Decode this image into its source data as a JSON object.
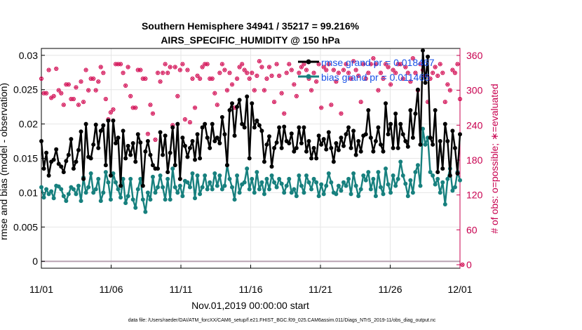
{
  "chart_data": {
    "type": "line",
    "title_line1": "Southern Hemisphere 34941 / 35217 = 99.216%",
    "title_line2": "AIRS_SPECIFIC_HUMIDITY @ 150 hPa",
    "xlabel": "Nov.01,2019 00:00:00 start",
    "ylabel_left": "rmse and bias (model - observation)",
    "ylabel_right": "# of obs: o=possible; ∗=evaluated",
    "footer": "data file: /Users/raeder/DAI/ATM_forcXX/CAM6_setup/f.e21.FHIST_BGC.f09_025.CAM6assim.011/Diags_NTrS_2019-11/obs_diag_output.nc",
    "x_tick_labels": [
      "11/01",
      "11/06",
      "11/11",
      "11/16",
      "11/21",
      "11/26",
      "12/01"
    ],
    "x_tick_days": [
      0,
      5,
      10,
      15,
      20,
      25,
      30
    ],
    "xlim": [
      0,
      30
    ],
    "ylim_left": [
      -0.001,
      0.031
    ],
    "y_left_ticks": [
      0,
      0.005,
      0.01,
      0.015,
      0.02,
      0.025,
      0.03
    ],
    "y_left_tick_labels": [
      "0",
      "0.005",
      "0.01",
      "0.015",
      "0.02",
      "0.025",
      "0.03"
    ],
    "ylim_right": [
      -6,
      372
    ],
    "y_right_ticks": [
      0,
      60,
      120,
      180,
      240,
      300,
      360
    ],
    "y_right_tick_labels": [
      "0",
      "60",
      "120",
      "180",
      "240",
      "300",
      "360"
    ],
    "grid": true,
    "legend": {
      "placement": "top-right",
      "entries": [
        "rmse grand pr = 0.018467",
        "bias grand pr = 0.011465"
      ]
    },
    "colors": {
      "rmse": "#000000",
      "bias": "#17807e",
      "obs": "#d4165a",
      "legend_text": "#1a52e6",
      "right_axis": "#c8004f"
    },
    "series": [
      {
        "name": "rmse",
        "values": [
          0.0175,
          0.0135,
          0.0158,
          0.0125,
          0.0145,
          0.0148,
          0.0163,
          0.0142,
          0.0138,
          0.013,
          0.0146,
          0.0155,
          0.0178,
          0.0135,
          0.0145,
          0.0162,
          0.0189,
          0.012,
          0.02,
          0.0152,
          0.015,
          0.017,
          0.0199,
          0.0165,
          0.019,
          0.0198,
          0.014,
          0.0205,
          0.0125,
          0.0205,
          0.0172,
          0.018,
          0.011,
          0.019,
          0.015,
          0.0168,
          0.0155,
          0.0172,
          0.0145,
          0.0185,
          0.0173,
          0.011,
          0.016,
          0.0175,
          0.0155,
          0.014,
          0.0135,
          0.0135,
          0.0188,
          0.0155,
          0.0183,
          0.013,
          0.0158,
          0.0195,
          0.014,
          0.02,
          0.012,
          0.018,
          0.0168,
          0.0152,
          0.0165,
          0.0175,
          0.0148,
          0.0185,
          0.015,
          0.0195,
          0.02,
          0.018,
          0.0165,
          0.02,
          0.0175,
          0.018,
          0.0172,
          0.021,
          0.0185,
          0.014,
          0.022,
          0.023,
          0.0183,
          0.0225,
          0.0235,
          0.02,
          0.0195,
          0.024,
          0.015,
          0.023,
          0.0195,
          0.0205,
          0.0198,
          0.019,
          0.0145,
          0.017,
          0.0182,
          0.0138,
          0.0165,
          0.0173,
          0.0195,
          0.0165,
          0.0196,
          0.0175,
          0.0172,
          0.0186,
          0.016,
          0.0165,
          0.0195,
          0.0172,
          0.0195,
          0.016,
          0.0175,
          0.015,
          0.0165,
          0.015,
          0.0183,
          0.017,
          0.0178,
          0.0163,
          0.0188,
          0.0165,
          0.0145,
          0.0172,
          0.0162,
          0.018,
          0.0168,
          0.0185,
          0.0195,
          0.0165,
          0.019,
          0.0155,
          0.0175,
          0.016,
          0.0183,
          0.0185,
          0.022,
          0.018,
          0.016,
          0.0175,
          0.0195,
          0.017,
          0.016,
          0.023,
          0.0185,
          0.02,
          0.0165,
          0.0215,
          0.0165,
          0.02,
          0.0185,
          0.0175,
          0.0167,
          0.022,
          0.018,
          0.0215,
          0.025,
          0.017,
          0.0307,
          0.026,
          0.0298,
          0.018,
          0.017,
          0.022,
          0.013,
          0.0175,
          0.0135,
          0.02,
          0.0175,
          0.0125,
          0.019,
          0.0165,
          0.0128,
          0.0185
        ]
      },
      {
        "name": "bias",
        "values": [
          0.0108,
          0.0093,
          0.0105,
          0.0098,
          0.0102,
          0.0092,
          0.011,
          0.0109,
          0.0105,
          0.0095,
          0.0088,
          0.0098,
          0.0108,
          0.0105,
          0.0098,
          0.011,
          0.0088,
          0.0122,
          0.01,
          0.0108,
          0.0128,
          0.01,
          0.0105,
          0.012,
          0.0088,
          0.01,
          0.013,
          0.0115,
          0.009,
          0.0128,
          0.0115,
          0.0105,
          0.0093,
          0.012,
          0.0085,
          0.0095,
          0.012,
          0.009,
          0.0078,
          0.0105,
          0.012,
          0.009,
          0.0072,
          0.01,
          0.009,
          0.0123,
          0.01,
          0.0108,
          0.0125,
          0.0108,
          0.009,
          0.012,
          0.009,
          0.0135,
          0.0108,
          0.01,
          0.011,
          0.0095,
          0.0117,
          0.0115,
          0.0108,
          0.0128,
          0.0092,
          0.0125,
          0.0098,
          0.0108,
          0.0125,
          0.0105,
          0.0115,
          0.0105,
          0.0128,
          0.011,
          0.0125,
          0.0105,
          0.011,
          0.014,
          0.012,
          0.0108,
          0.009,
          0.0125,
          0.01,
          0.0112,
          0.0115,
          0.0135,
          0.0105,
          0.012,
          0.01,
          0.013,
          0.0105,
          0.0115,
          0.0098,
          0.012,
          0.0105,
          0.0125,
          0.0115,
          0.0108,
          0.012,
          0.0113,
          0.01,
          0.011,
          0.012,
          0.01,
          0.0105,
          0.0095,
          0.0125,
          0.011,
          0.01,
          0.0125,
          0.0115,
          0.0105,
          0.012,
          0.0115,
          0.0095,
          0.0112,
          0.0098,
          0.011,
          0.0128,
          0.0115,
          0.01,
          0.0098,
          0.011,
          0.0103,
          0.0115,
          0.011,
          0.012,
          0.0098,
          0.0128,
          0.011,
          0.0095,
          0.0105,
          0.0125,
          0.0118,
          0.013,
          0.0105,
          0.012,
          0.0095,
          0.013,
          0.0108,
          0.0098,
          0.0135,
          0.0112,
          0.01,
          0.0125,
          0.011,
          0.012,
          0.0145,
          0.0125,
          0.0113,
          0.0095,
          0.0118,
          0.01,
          0.013,
          0.014,
          0.011,
          0.0193,
          0.017,
          0.018,
          0.013,
          0.0125,
          0.0112,
          0.012,
          0.01,
          0.0115,
          0.0083,
          0.012,
          0.0135,
          0.0103,
          0.0108,
          0.013,
          0.0118
        ]
      },
      {
        "name": "obs_possible",
        "values": [
          320,
          295,
          295,
          335,
          287,
          290,
          337,
          300,
          295,
          275,
          310,
          310,
          285,
          285,
          305,
          275,
          315,
          280,
          335,
          300,
          320,
          320,
          300,
          315,
          340,
          330,
          285,
          250,
          262,
          267,
          345,
          345,
          345,
          330,
          308,
          340,
          290,
          270,
          270,
          335,
          335,
          320,
          320,
          225,
          275,
          260,
          215,
          330,
          315,
          330,
          345,
          330,
          340,
          240,
          340,
          290,
          335,
          345,
          250,
          335,
          245,
          320,
          270,
          325,
          320,
          340,
          345,
          345,
          320,
          320,
          295,
          275,
          330,
          345,
          335,
          300,
          330,
          310,
          270,
          320,
          340,
          345,
          335,
          330,
          320,
          330,
          300,
          325,
          350,
          340,
          300,
          320,
          340,
          325,
          280,
          345,
          325,
          295,
          260,
          330,
          345,
          335,
          310,
          290,
          330,
          340,
          345,
          335,
          320,
          300,
          330,
          315,
          345,
          270,
          340,
          335,
          345,
          275,
          335,
          315,
          330,
          260,
          335,
          345,
          330,
          320,
          350,
          335,
          325,
          280,
          345,
          320,
          330,
          345,
          355,
          345,
          300,
          330,
          320,
          345,
          340,
          310,
          335,
          330,
          345,
          345,
          320,
          340,
          330,
          315,
          355,
          330,
          300,
          345,
          335,
          325,
          280,
          320,
          330,
          340,
          325,
          345,
          330,
          280,
          310,
          300,
          335,
          330,
          345,
          285,
          0
        ]
      },
      {
        "name": "obs_evaluated",
        "values": [
          320,
          295,
          295,
          335,
          287,
          290,
          337,
          300,
          295,
          275,
          310,
          310,
          285,
          285,
          305,
          275,
          315,
          280,
          335,
          300,
          320,
          320,
          300,
          315,
          340,
          330,
          285,
          250,
          262,
          267,
          345,
          345,
          345,
          330,
          308,
          340,
          290,
          270,
          270,
          335,
          335,
          320,
          320,
          225,
          275,
          260,
          215,
          330,
          315,
          330,
          345,
          330,
          340,
          240,
          340,
          290,
          335,
          345,
          250,
          335,
          245,
          320,
          270,
          325,
          320,
          340,
          345,
          345,
          320,
          320,
          295,
          275,
          330,
          345,
          335,
          300,
          330,
          310,
          270,
          320,
          340,
          345,
          335,
          330,
          320,
          330,
          300,
          325,
          350,
          340,
          300,
          320,
          340,
          325,
          280,
          345,
          325,
          295,
          260,
          330,
          345,
          335,
          310,
          290,
          330,
          340,
          345,
          335,
          320,
          300,
          330,
          315,
          345,
          270,
          340,
          335,
          345,
          275,
          335,
          315,
          330,
          260,
          335,
          345,
          330,
          320,
          350,
          335,
          325,
          280,
          345,
          320,
          330,
          345,
          355,
          345,
          300,
          330,
          320,
          345,
          340,
          310,
          335,
          330,
          345,
          345,
          320,
          340,
          330,
          315,
          355,
          330,
          300,
          345,
          335,
          325,
          280,
          320,
          330,
          340,
          325,
          345,
          330,
          280,
          310,
          300,
          335,
          330,
          345,
          285,
          0
        ]
      }
    ]
  }
}
